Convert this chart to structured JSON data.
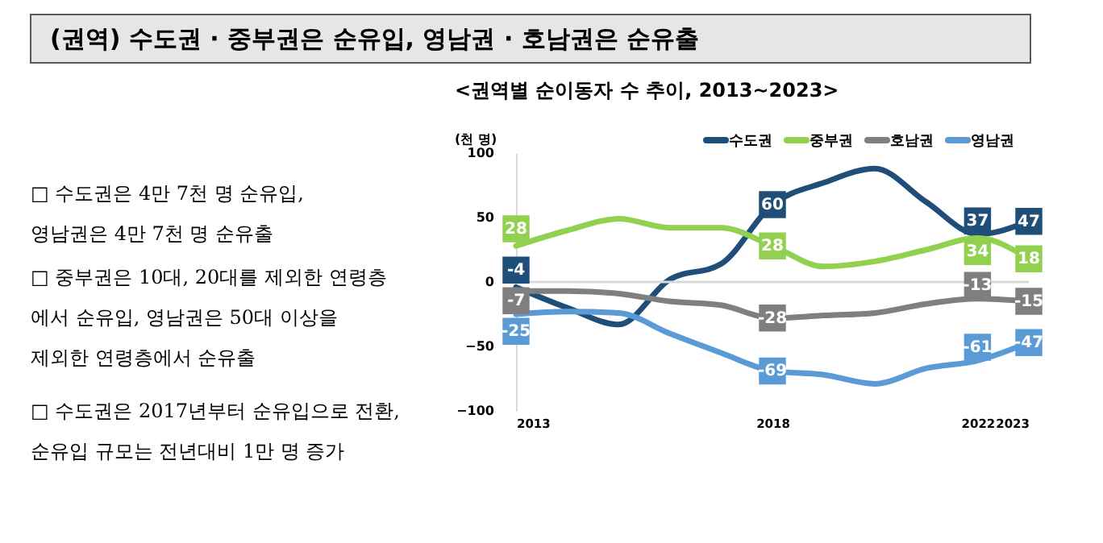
{
  "chart_data": {
    "type": "line",
    "title": "<권역별 순이동자 수 추이, 2013~2023>",
    "ylabel": "(천 명)",
    "x": [
      2013,
      2014,
      2015,
      2016,
      2017,
      2018,
      2019,
      2020,
      2021,
      2022,
      2023
    ],
    "xlim": [
      2013,
      2023
    ],
    "xticks": [
      2013,
      2018,
      2022,
      2023
    ],
    "ylim": [
      -100,
      100
    ],
    "yticks": [
      -100,
      -50,
      0,
      50,
      100
    ],
    "series": [
      {
        "name": "수도권",
        "color": "#1f4e79",
        "values": [
          -4,
          -20,
          -33,
          2,
          14,
          60,
          77,
          88,
          62,
          37,
          47
        ],
        "value_labels": [
          "-4",
          null,
          null,
          null,
          null,
          "60",
          null,
          null,
          null,
          "37",
          "47"
        ]
      },
      {
        "name": "중부권",
        "color": "#92d050",
        "values": [
          28,
          40,
          49,
          42,
          42,
          28,
          12,
          16,
          25,
          34,
          18
        ],
        "value_labels": [
          "28",
          null,
          null,
          null,
          null,
          "28",
          null,
          null,
          null,
          "34",
          "18"
        ]
      },
      {
        "name": "호남권",
        "color": "#7f7f7f",
        "values": [
          -7,
          -7,
          -9,
          -15,
          -18,
          -28,
          -26,
          -24,
          -17,
          -13,
          -15
        ],
        "value_labels": [
          "-7",
          null,
          null,
          null,
          null,
          "-28",
          null,
          null,
          null,
          "-13",
          "-15"
        ]
      },
      {
        "name": "영남권",
        "color": "#5b9bd5",
        "values": [
          -25,
          -23,
          -24,
          -40,
          -55,
          -69,
          -72,
          -79,
          -67,
          -61,
          -47
        ],
        "value_labels": [
          "-25",
          null,
          null,
          null,
          null,
          "-69",
          null,
          null,
          null,
          "-61",
          "-47"
        ]
      }
    ],
    "ref_lines": [
      {
        "axis": "y",
        "value": 0,
        "color": "#d9d9d9"
      }
    ],
    "legend": "top right",
    "grid": false,
    "marker": "none",
    "line_style": "solid",
    "annotations": [
      "(권역) 수도권 · 중부권은 순유입, 영남권 · 호남권은 순유출",
      "□ 수도권은 4만 7천 명 순유입,\n    영남권은 4만 7천 명 순유출",
      "□ 중부권은 10대, 20대를 제외한 연령층\n    에서 순유입, 영남권은 50대 이상을\n    제외한 연령층에서 순유출",
      "□ 수도권은 2017년부터 순유입으로 전환,\n    순유입 규모는 전년대비 1만 명 증가"
    ]
  }
}
